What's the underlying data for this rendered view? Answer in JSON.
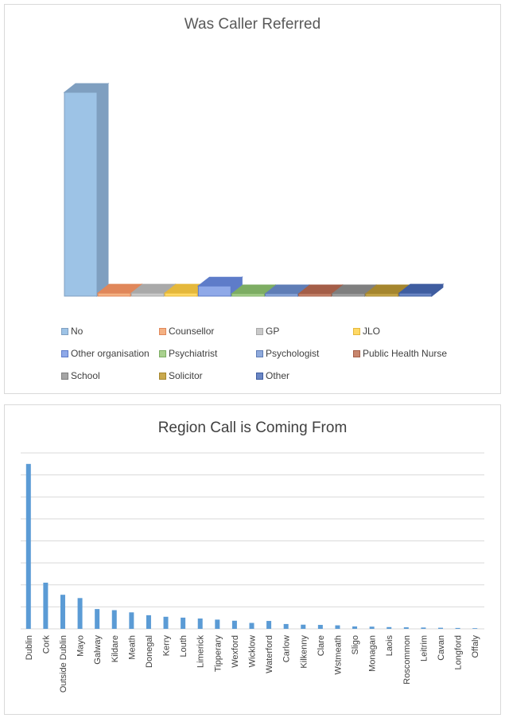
{
  "chart_data": [
    {
      "type": "bar",
      "style": "3d-column",
      "title": "Was Caller Referred",
      "categories": [
        "No",
        "Counsellor",
        "GP",
        "JLO",
        "Other organisation",
        "Psychiatrist",
        "Psychologist",
        "Public Health Nurse",
        "School",
        "Solicitor",
        "Other"
      ],
      "values": [
        100,
        1.5,
        1.5,
        1.5,
        5,
        1,
        1,
        1,
        1,
        1,
        1.5
      ],
      "ylim": [
        0,
        100
      ],
      "legend": "bottom",
      "colors": [
        "#9dc3e6",
        "#f4b183",
        "#c9c9c9",
        "#ffd966",
        "#8fa9e8",
        "#a9d18e",
        "#8faadc",
        "#c8866d",
        "#a5a5a5",
        "#c9a94e",
        "#6a86c4"
      ],
      "sides": [
        "#7f9fc0",
        "#e0875a",
        "#a9a9a9",
        "#e5b83b",
        "#5e7cc9",
        "#7dad63",
        "#5f7db6",
        "#a45e48",
        "#7f7f7f",
        "#a5862e",
        "#3f5da0"
      ]
    },
    {
      "type": "bar",
      "title": "Region Call is Coming From",
      "categories": [
        "Dublin",
        "Cork",
        "Outside Dublin",
        "Mayo",
        "Galway",
        "Kildare",
        "Meath",
        "Donegal",
        "Kerry",
        "Louth",
        "Limerick",
        "Tipperary",
        "Wexford",
        "Wicklow",
        "Waterford",
        "Carlow",
        "Kilkenny",
        "Clare",
        "Wstmeath",
        "Sligo",
        "Monagan",
        "Laois",
        "Roscommon",
        "Leitrim",
        "Cavan",
        "Longford",
        "Offaly"
      ],
      "values": [
        75,
        21,
        15.5,
        14,
        9,
        8.5,
        7.5,
        6.2,
        5.5,
        5.1,
        4.7,
        4.2,
        3.7,
        2.7,
        3.6,
        2.2,
        1.9,
        1.8,
        1.6,
        1.1,
        1.0,
        0.8,
        0.7,
        0.6,
        0.5,
        0.4,
        0.3
      ],
      "ylim": [
        0,
        80
      ],
      "grid": true,
      "color": "#5b9bd5"
    }
  ]
}
